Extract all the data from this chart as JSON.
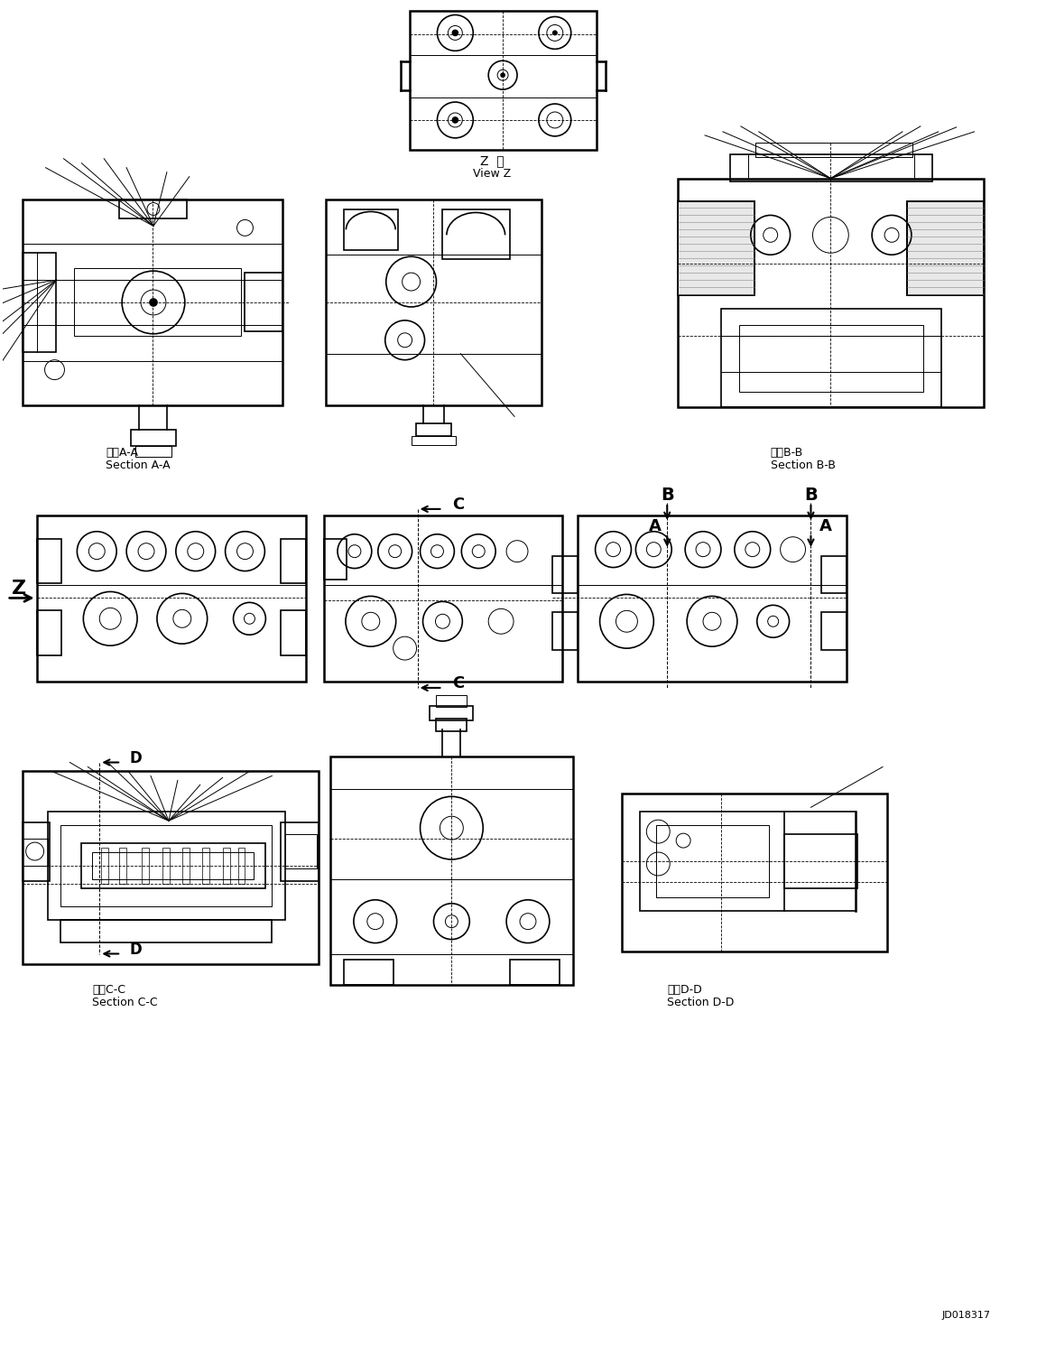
{
  "background_color": "#ffffff",
  "line_color": "#000000",
  "labels": {
    "view_z_japanese": "Z  視",
    "view_z_english": "View Z",
    "section_aa_japanese": "断面A-A",
    "section_aa_english": "Section A-A",
    "section_bb_japanese": "断面B-B",
    "section_bb_english": "Section B-B",
    "section_cc_japanese": "断面C-C",
    "section_cc_english": "Section C-C",
    "section_dd_japanese": "断面D-D",
    "section_dd_english": "Section D-D",
    "drawing_number": "JD018317"
  },
  "figsize": [
    11.59,
    14.91
  ],
  "dpi": 100
}
